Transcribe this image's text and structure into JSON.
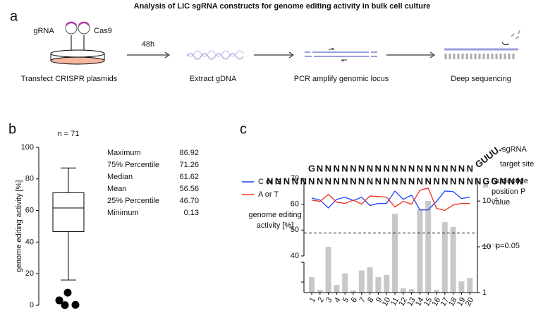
{
  "title": "Analysis of LIC sgRNA constructs for genome editing activity in bulk cell culture",
  "panel_labels": [
    "a",
    "b",
    "c"
  ],
  "panel_a": {
    "plasmids": [
      "gRNA",
      "Cas9"
    ],
    "time": "48h",
    "steps": [
      "Transfect CRISPR plasmids",
      "Extract gDNA",
      "PCR amplify genomic locus",
      "Deep sequencing"
    ]
  },
  "chart_data": [
    {
      "type": "box",
      "title": "n = 71",
      "y_label": "genome editing activity [%]",
      "ylim": [
        0,
        100
      ],
      "yticks": [
        0,
        20,
        40,
        60,
        80,
        100
      ],
      "stats": {
        "labels": [
          "Maximum",
          "75% Percentile",
          "Median",
          "Mean",
          "25% Percentile",
          "Minimum"
        ],
        "values": [
          86.92,
          71.26,
          61.62,
          56.56,
          46.7,
          0.13
        ],
        "value_labels": [
          "86.92",
          "71.26",
          "61.62",
          "56.56",
          "46.70",
          "0.13"
        ]
      },
      "whisker_low": 16,
      "outliers": [
        3.1,
        8.0,
        0.13,
        0.3
      ],
      "color": "#000000"
    },
    {
      "type": "line-bar",
      "categories": [
        "1",
        "2",
        "3",
        "4",
        "5",
        "6",
        "7",
        "8",
        "9",
        "10",
        "11",
        "12",
        "13",
        "14",
        "15",
        "16",
        "17",
        "18",
        "19",
        "20"
      ],
      "y_label": "genome editing activity [%]",
      "ylim": [
        40,
        70
      ],
      "yticks": [
        40,
        50,
        60,
        70
      ],
      "y2lim": [
        1,
        0.0032
      ],
      "y2_log": true,
      "y2ticks": [
        1,
        {
          "value": 0.1,
          "label": "10⁻¹"
        },
        {
          "value": 0.01,
          "label": "10⁻²"
        }
      ],
      "series": [
        {
          "name": "C or G",
          "color": "#2040ff",
          "values": [
            62.4,
            61.6,
            58.6,
            61.9,
            62.7,
            61.4,
            62.7,
            59.5,
            60.3,
            60.3,
            65.1,
            61.9,
            63.5,
            57.8,
            57.8,
            61.1,
            65.1,
            64.9,
            62.2,
            62.7
          ]
        },
        {
          "name": "A or T",
          "color": "#f03020",
          "values": [
            61.6,
            61.1,
            63.8,
            60.8,
            60.3,
            61.6,
            60.0,
            63.2,
            63.0,
            62.7,
            58.9,
            61.1,
            60.0,
            65.4,
            66.2,
            58.4,
            57.6,
            59.7,
            60.3,
            60.3
          ]
        },
        {
          "name": "Nucleotide position P value",
          "color": "#c8c8c8",
          "type": "bar",
          "axis": "y2",
          "values": [
            0.46,
            0.87,
            0.1,
            0.68,
            0.38,
            0.9,
            0.33,
            0.28,
            0.46,
            0.41,
            0.019,
            0.81,
            0.84,
            0.015,
            0.01,
            0.87,
            0.029,
            0.037,
            0.57,
            0.48
          ]
        }
      ],
      "threshold": {
        "value": 0.05,
        "label": "p=0.05"
      },
      "sequence": {
        "sgrna_label": "sgRNA",
        "target_label": "target site",
        "guide_first": "G",
        "guide": "NNNNNNNNNNNNNNNNNNN",
        "scaffold": "GUUU..",
        "flank_left": "NNNNN",
        "target": "NNNNNNNNNNNNNNNNNNNN",
        "pam": "NGG",
        "flank_right": "NNN"
      }
    }
  ]
}
